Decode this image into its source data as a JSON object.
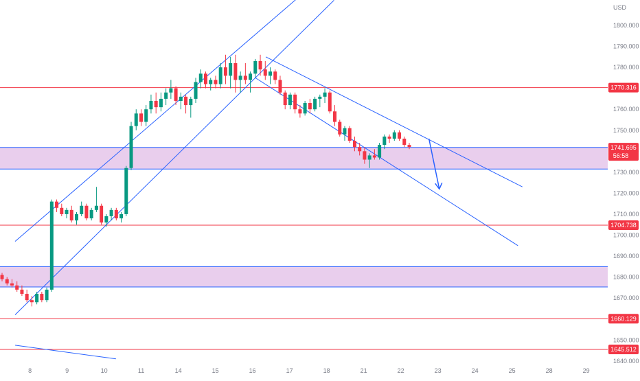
{
  "chart_data": {
    "type": "candlestick",
    "currency": "USD",
    "ylim": [
      1635,
      1810
    ],
    "x_domain": [
      0,
      29
    ],
    "y_ticks": [
      1640,
      1650,
      1660,
      1670,
      1680,
      1690,
      1700,
      1710,
      1720,
      1730,
      1740,
      1750,
      1760,
      1770,
      1780,
      1790,
      1800
    ],
    "y_tick_labels": [
      "1640.000",
      "1650.000",
      "1660.000",
      "1670.000",
      "1680.000",
      "1690.000",
      "1700.000",
      "1710.000",
      "1720.000",
      "1730.000",
      "1740.000",
      "1750.000",
      "1760.000",
      "1770.000",
      "1780.000",
      "1790.000",
      "1800.000"
    ],
    "x_ticks": [
      {
        "label": "8",
        "t": 1.0
      },
      {
        "label": "9",
        "t": 3.5
      },
      {
        "label": "10",
        "t": 6.0
      },
      {
        "label": "11",
        "t": 8.5
      },
      {
        "label": "14",
        "t": 11.0
      },
      {
        "label": "15",
        "t": 13.5
      },
      {
        "label": "16",
        "t": 16.0
      },
      {
        "label": "17",
        "t": 18.5
      },
      {
        "label": "18",
        "t": 21.0
      },
      {
        "label": "21",
        "t": 23.5
      },
      {
        "label": "22",
        "t": 26.0
      },
      {
        "label": "23",
        "t": 28.5
      },
      {
        "label": "24",
        "t": 31.0
      },
      {
        "label": "25",
        "t": 33.5
      },
      {
        "label": "28",
        "t": 36.0
      },
      {
        "label": "29",
        "t": 38.5
      }
    ],
    "candles_ohlc": [
      [
        1681,
        1682,
        1678,
        1679
      ],
      [
        1679,
        1680,
        1676,
        1677
      ],
      [
        1677,
        1679,
        1675,
        1676
      ],
      [
        1676,
        1678,
        1673,
        1674
      ],
      [
        1674,
        1676,
        1671,
        1672
      ],
      [
        1672,
        1674,
        1668,
        1669
      ],
      [
        1669,
        1671,
        1666,
        1668
      ],
      [
        1668,
        1673,
        1667,
        1672
      ],
      [
        1672,
        1673,
        1668,
        1669
      ],
      [
        1669,
        1675,
        1668,
        1674
      ],
      [
        1674,
        1717,
        1673,
        1716
      ],
      [
        1716,
        1717,
        1711,
        1713
      ],
      [
        1713,
        1715,
        1709,
        1710
      ],
      [
        1710,
        1713,
        1708,
        1712
      ],
      [
        1712,
        1714,
        1706,
        1707
      ],
      [
        1707,
        1711,
        1705,
        1710
      ],
      [
        1710,
        1716,
        1709,
        1714
      ],
      [
        1714,
        1715,
        1707,
        1708
      ],
      [
        1708,
        1713,
        1707,
        1712
      ],
      [
        1712,
        1723,
        1711,
        1714
      ],
      [
        1714,
        1715,
        1705,
        1706
      ],
      [
        1706,
        1710,
        1704,
        1709
      ],
      [
        1709,
        1713,
        1707,
        1712
      ],
      [
        1712,
        1713,
        1707,
        1708
      ],
      [
        1708,
        1711,
        1706,
        1710
      ],
      [
        1710,
        1733,
        1709,
        1732
      ],
      [
        1732,
        1754,
        1731,
        1752
      ],
      [
        1752,
        1760,
        1750,
        1758
      ],
      [
        1758,
        1760,
        1752,
        1754
      ],
      [
        1754,
        1762,
        1752,
        1760
      ],
      [
        1760,
        1767,
        1758,
        1764
      ],
      [
        1764,
        1768,
        1758,
        1761
      ],
      [
        1761,
        1768,
        1759,
        1765
      ],
      [
        1765,
        1770,
        1762,
        1768
      ],
      [
        1768,
        1774,
        1765,
        1770
      ],
      [
        1770,
        1771,
        1762,
        1764
      ],
      [
        1764,
        1768,
        1760,
        1766
      ],
      [
        1766,
        1767,
        1758,
        1762
      ],
      [
        1762,
        1766,
        1756,
        1765
      ],
      [
        1765,
        1775,
        1763,
        1773
      ],
      [
        1773,
        1779,
        1770,
        1777
      ],
      [
        1777,
        1778,
        1770,
        1772
      ],
      [
        1772,
        1775,
        1769,
        1774
      ],
      [
        1774,
        1776,
        1770,
        1772
      ],
      [
        1772,
        1782,
        1770,
        1780
      ],
      [
        1780,
        1786,
        1772,
        1776
      ],
      [
        1776,
        1785,
        1770,
        1782
      ],
      [
        1782,
        1786,
        1768,
        1774
      ],
      [
        1774,
        1778,
        1768,
        1776
      ],
      [
        1776,
        1782,
        1772,
        1774
      ],
      [
        1774,
        1778,
        1768,
        1777
      ],
      [
        1777,
        1784,
        1775,
        1783
      ],
      [
        1783,
        1786,
        1776,
        1779
      ],
      [
        1779,
        1783,
        1774,
        1776
      ],
      [
        1776,
        1780,
        1772,
        1778
      ],
      [
        1778,
        1779,
        1772,
        1774
      ],
      [
        1774,
        1776,
        1767,
        1768
      ],
      [
        1768,
        1769,
        1760,
        1762
      ],
      [
        1762,
        1768,
        1760,
        1767
      ],
      [
        1767,
        1768,
        1758,
        1760
      ],
      [
        1760,
        1762,
        1756,
        1758
      ],
      [
        1758,
        1764,
        1757,
        1763
      ],
      [
        1763,
        1765,
        1758,
        1760
      ],
      [
        1760,
        1766,
        1759,
        1765
      ],
      [
        1765,
        1767,
        1761,
        1766
      ],
      [
        1766,
        1770,
        1763,
        1768
      ],
      [
        1768,
        1769,
        1758,
        1759
      ],
      [
        1759,
        1762,
        1752,
        1754
      ],
      [
        1754,
        1755,
        1747,
        1748
      ],
      [
        1748,
        1752,
        1745,
        1751
      ],
      [
        1751,
        1752,
        1744,
        1745
      ],
      [
        1745,
        1747,
        1740,
        1742
      ],
      [
        1742,
        1744,
        1738,
        1740
      ],
      [
        1740,
        1742,
        1734,
        1736
      ],
      [
        1736,
        1739,
        1732,
        1738
      ],
      [
        1738,
        1741,
        1736,
        1737
      ],
      [
        1737,
        1744,
        1736,
        1743
      ],
      [
        1743,
        1748,
        1741,
        1747
      ],
      [
        1747,
        1748,
        1744,
        1746
      ],
      [
        1746,
        1750,
        1745,
        1749
      ],
      [
        1749,
        1750,
        1745,
        1746
      ],
      [
        1746,
        1747,
        1742,
        1743
      ],
      [
        1743,
        1744,
        1741,
        1742
      ]
    ],
    "horizontal_levels": [
      {
        "value": 1770.316,
        "label": "1770.316"
      },
      {
        "value": 1704.738,
        "label": "1704.738"
      },
      {
        "value": 1660.129,
        "label": "1660.129"
      },
      {
        "value": 1645.512,
        "label": "1645.512"
      }
    ],
    "zones": [
      {
        "from": 1731.5,
        "to": 1741.8
      },
      {
        "from": 1675.3,
        "to": 1685.0
      }
    ],
    "current_price": {
      "value": 1741.695,
      "label": "1741.695",
      "countdown": "56:58"
    },
    "trendlines": [
      {
        "t1": 0,
        "p1": 1697,
        "t2": 21.5,
        "p2": 1828
      },
      {
        "t1": 0,
        "p1": 1662,
        "t2": 21.5,
        "p2": 1812
      },
      {
        "t1": 16.9,
        "p1": 1785,
        "t2": 34.2,
        "p2": 1723
      },
      {
        "t1": 16.2,
        "p1": 1775,
        "t2": 33.9,
        "p2": 1695
      },
      {
        "t1": 0,
        "p1": 1647.5,
        "t2": 6.8,
        "p2": 1641
      }
    ],
    "arrow": {
      "t1": 27.9,
      "p1": 1746,
      "t2": 28.6,
      "p2": 1722
    },
    "colors": {
      "up": "#089981",
      "down": "#f23645",
      "level_line": "#f23645",
      "trendline": "#2962ff",
      "zone_fill": "#e1bee7"
    }
  }
}
